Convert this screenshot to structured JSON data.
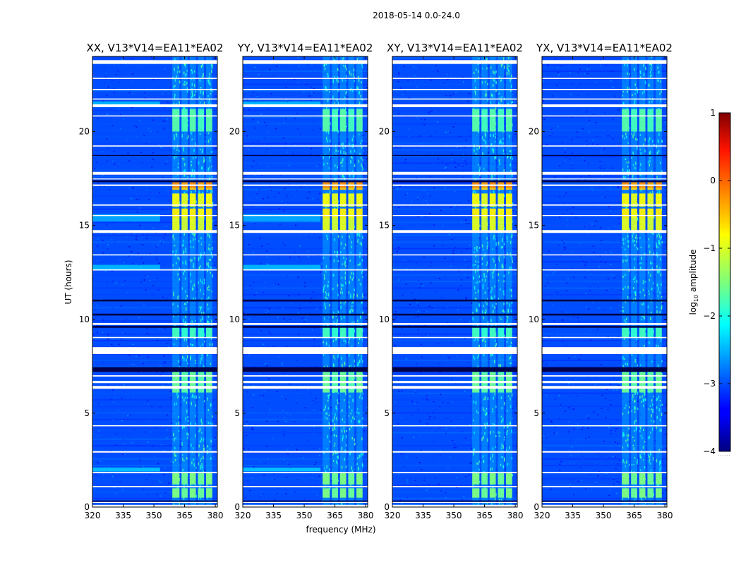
{
  "chart_data": {
    "type": "heatmap",
    "suptitle": "2018-05-14 0.0-24.0",
    "xlabel": "frequency (MHz)",
    "ylabel": "UT (hours)",
    "xlim": [
      320,
      381
    ],
    "ylim": [
      0,
      24
    ],
    "xticks": [
      320,
      335,
      350,
      365,
      380
    ],
    "yticks": [
      0,
      5,
      10,
      15,
      20
    ],
    "panels": [
      {
        "title": "XX, V13*V14=EA11*EA02",
        "polarization": "XX",
        "rfi_band_mhz": [
          359,
          379
        ],
        "leak_mhz": [
          320,
          353
        ]
      },
      {
        "title": "YY, V13*V14=EA11*EA02",
        "polarization": "YY",
        "rfi_band_mhz": [
          359,
          380
        ],
        "leak_mhz": [
          320,
          358
        ]
      },
      {
        "title": "XY, V13*V14=EA11*EA02",
        "polarization": "XY",
        "rfi_band_mhz": [
          359,
          379
        ],
        "leak_mhz": null
      },
      {
        "title": "YX, V13*V14=EA11*EA02",
        "polarization": "YX",
        "rfi_band_mhz": [
          359,
          379
        ],
        "leak_mhz": null
      }
    ],
    "rfi_channels_mhz": [
      {
        "start": 359,
        "end": 362.5
      },
      {
        "start": 363.5,
        "end": 366.5
      },
      {
        "start": 367.5,
        "end": 370.5
      },
      {
        "start": 371.5,
        "end": 374.5
      },
      {
        "start": 375.5,
        "end": 378.5
      }
    ],
    "strong_rfi_hours": [
      {
        "start": 14.7,
        "end": 15.4,
        "log_amp": -1.0
      },
      {
        "start": 15.4,
        "end": 15.9,
        "log_amp": -0.8
      },
      {
        "start": 16.0,
        "end": 16.7,
        "log_amp": -0.9
      },
      {
        "start": 16.9,
        "end": 17.0,
        "log_amp": -0.6
      },
      {
        "start": 17.0,
        "end": 17.3,
        "log_amp": -0.3
      },
      {
        "start": 0.5,
        "end": 1.0,
        "log_amp": -1.5
      },
      {
        "start": 1.2,
        "end": 1.8,
        "log_amp": -1.5
      },
      {
        "start": 6.1,
        "end": 7.2,
        "log_amp": -1.6
      },
      {
        "start": 9.0,
        "end": 9.6,
        "log_amp": -1.8
      },
      {
        "start": 20.0,
        "end": 21.2,
        "log_amp": -1.7
      }
    ],
    "flag_gaps_hours": [
      {
        "start": 0.0,
        "end": 0.12
      },
      {
        "start": 0.22,
        "end": 0.27
      },
      {
        "start": 1.05,
        "end": 1.12
      },
      {
        "start": 1.8,
        "end": 1.87
      },
      {
        "start": 2.9,
        "end": 2.98
      },
      {
        "start": 4.3,
        "end": 4.36
      },
      {
        "start": 6.3,
        "end": 6.45
      },
      {
        "start": 6.6,
        "end": 6.72
      },
      {
        "start": 6.95,
        "end": 7.02
      },
      {
        "start": 8.15,
        "end": 8.52
      },
      {
        "start": 9.0,
        "end": 9.06
      },
      {
        "start": 9.7,
        "end": 9.8
      },
      {
        "start": 12.6,
        "end": 12.66
      },
      {
        "start": 13.4,
        "end": 13.46
      },
      {
        "start": 14.6,
        "end": 14.75
      },
      {
        "start": 15.5,
        "end": 15.55
      },
      {
        "start": 16.05,
        "end": 16.12
      },
      {
        "start": 17.1,
        "end": 17.18
      },
      {
        "start": 17.45,
        "end": 17.5
      },
      {
        "start": 17.7,
        "end": 17.85
      },
      {
        "start": 19.2,
        "end": 19.26
      },
      {
        "start": 20.8,
        "end": 20.86
      },
      {
        "start": 21.3,
        "end": 21.45
      },
      {
        "start": 21.7,
        "end": 21.76
      },
      {
        "start": 22.2,
        "end": 22.27
      },
      {
        "start": 22.8,
        "end": 22.86
      },
      {
        "start": 23.6,
        "end": 23.8
      }
    ],
    "dark_rows_hours": [
      {
        "start": 0.28,
        "end": 0.35
      },
      {
        "start": 7.2,
        "end": 7.45
      },
      {
        "start": 9.55,
        "end": 9.65
      },
      {
        "start": 10.2,
        "end": 10.3
      },
      {
        "start": 10.95,
        "end": 11.05
      },
      {
        "start": 17.3,
        "end": 17.4
      },
      {
        "start": 18.7,
        "end": 18.75
      }
    ],
    "colorbar": {
      "label_prefix": "log",
      "label_subscript": "10",
      "label_suffix": " amplitude",
      "min": -4,
      "max": 1,
      "ticks": [
        1,
        0,
        -1,
        -2,
        -3,
        -4
      ],
      "tick_labels": [
        "1",
        "0",
        "−1",
        "−2",
        "−3",
        "−4"
      ],
      "colormap": "jet"
    },
    "background_log_amp": -3.0
  }
}
